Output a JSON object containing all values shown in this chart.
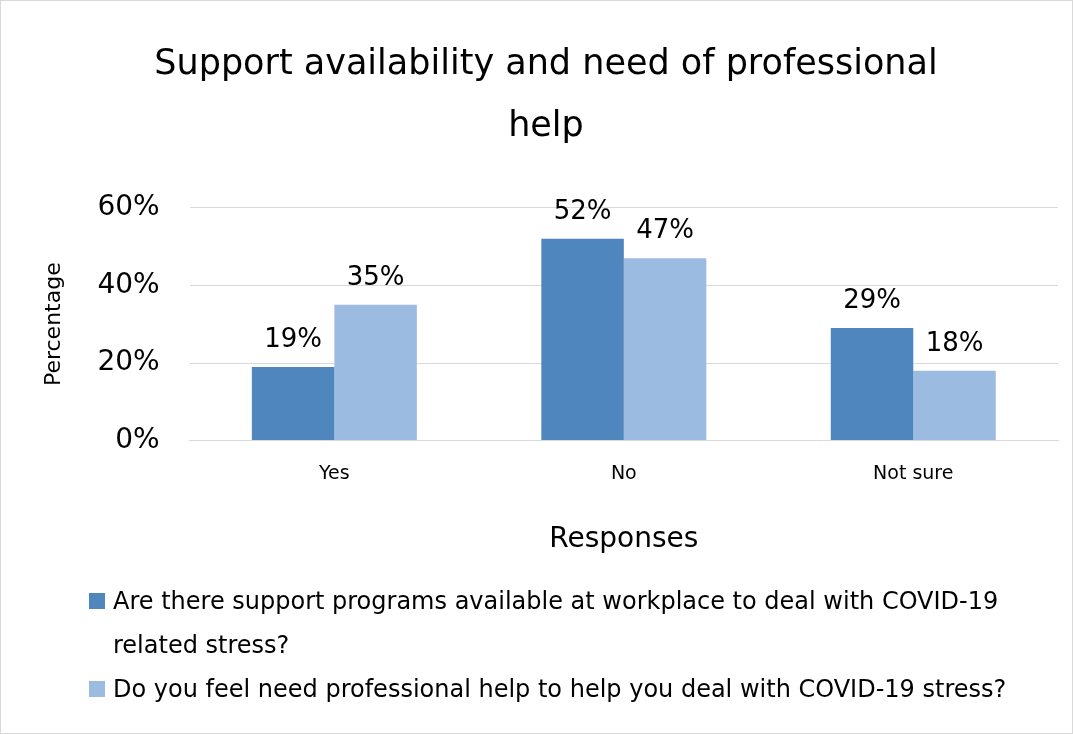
{
  "chart_data": {
    "type": "bar",
    "title": "Support availability and need of professional help",
    "xlabel": "Responses",
    "ylabel": "Percentage",
    "categories": [
      "Yes",
      "No",
      "Not sure"
    ],
    "series": [
      {
        "name": "Are there support programs available at workplace to deal with COVID-19 related stress?",
        "color": "#4f86bd",
        "values": [
          19,
          52,
          29
        ],
        "value_labels": [
          "19%",
          "52%",
          "29%"
        ]
      },
      {
        "name": "Do you feel need professional help to help you deal with COVID-19 stress?",
        "color": "#9bbbe0",
        "values": [
          35,
          47,
          18
        ],
        "value_labels": [
          "35%",
          "47%",
          "18%"
        ]
      }
    ],
    "ylim": [
      0,
      60
    ],
    "yticks": [
      {
        "value": 0,
        "label": "0%"
      },
      {
        "value": 20,
        "label": "20%"
      },
      {
        "value": 40,
        "label": "40%"
      },
      {
        "value": 60,
        "label": "60%"
      }
    ],
    "grid": "y",
    "legend": "bottom"
  }
}
